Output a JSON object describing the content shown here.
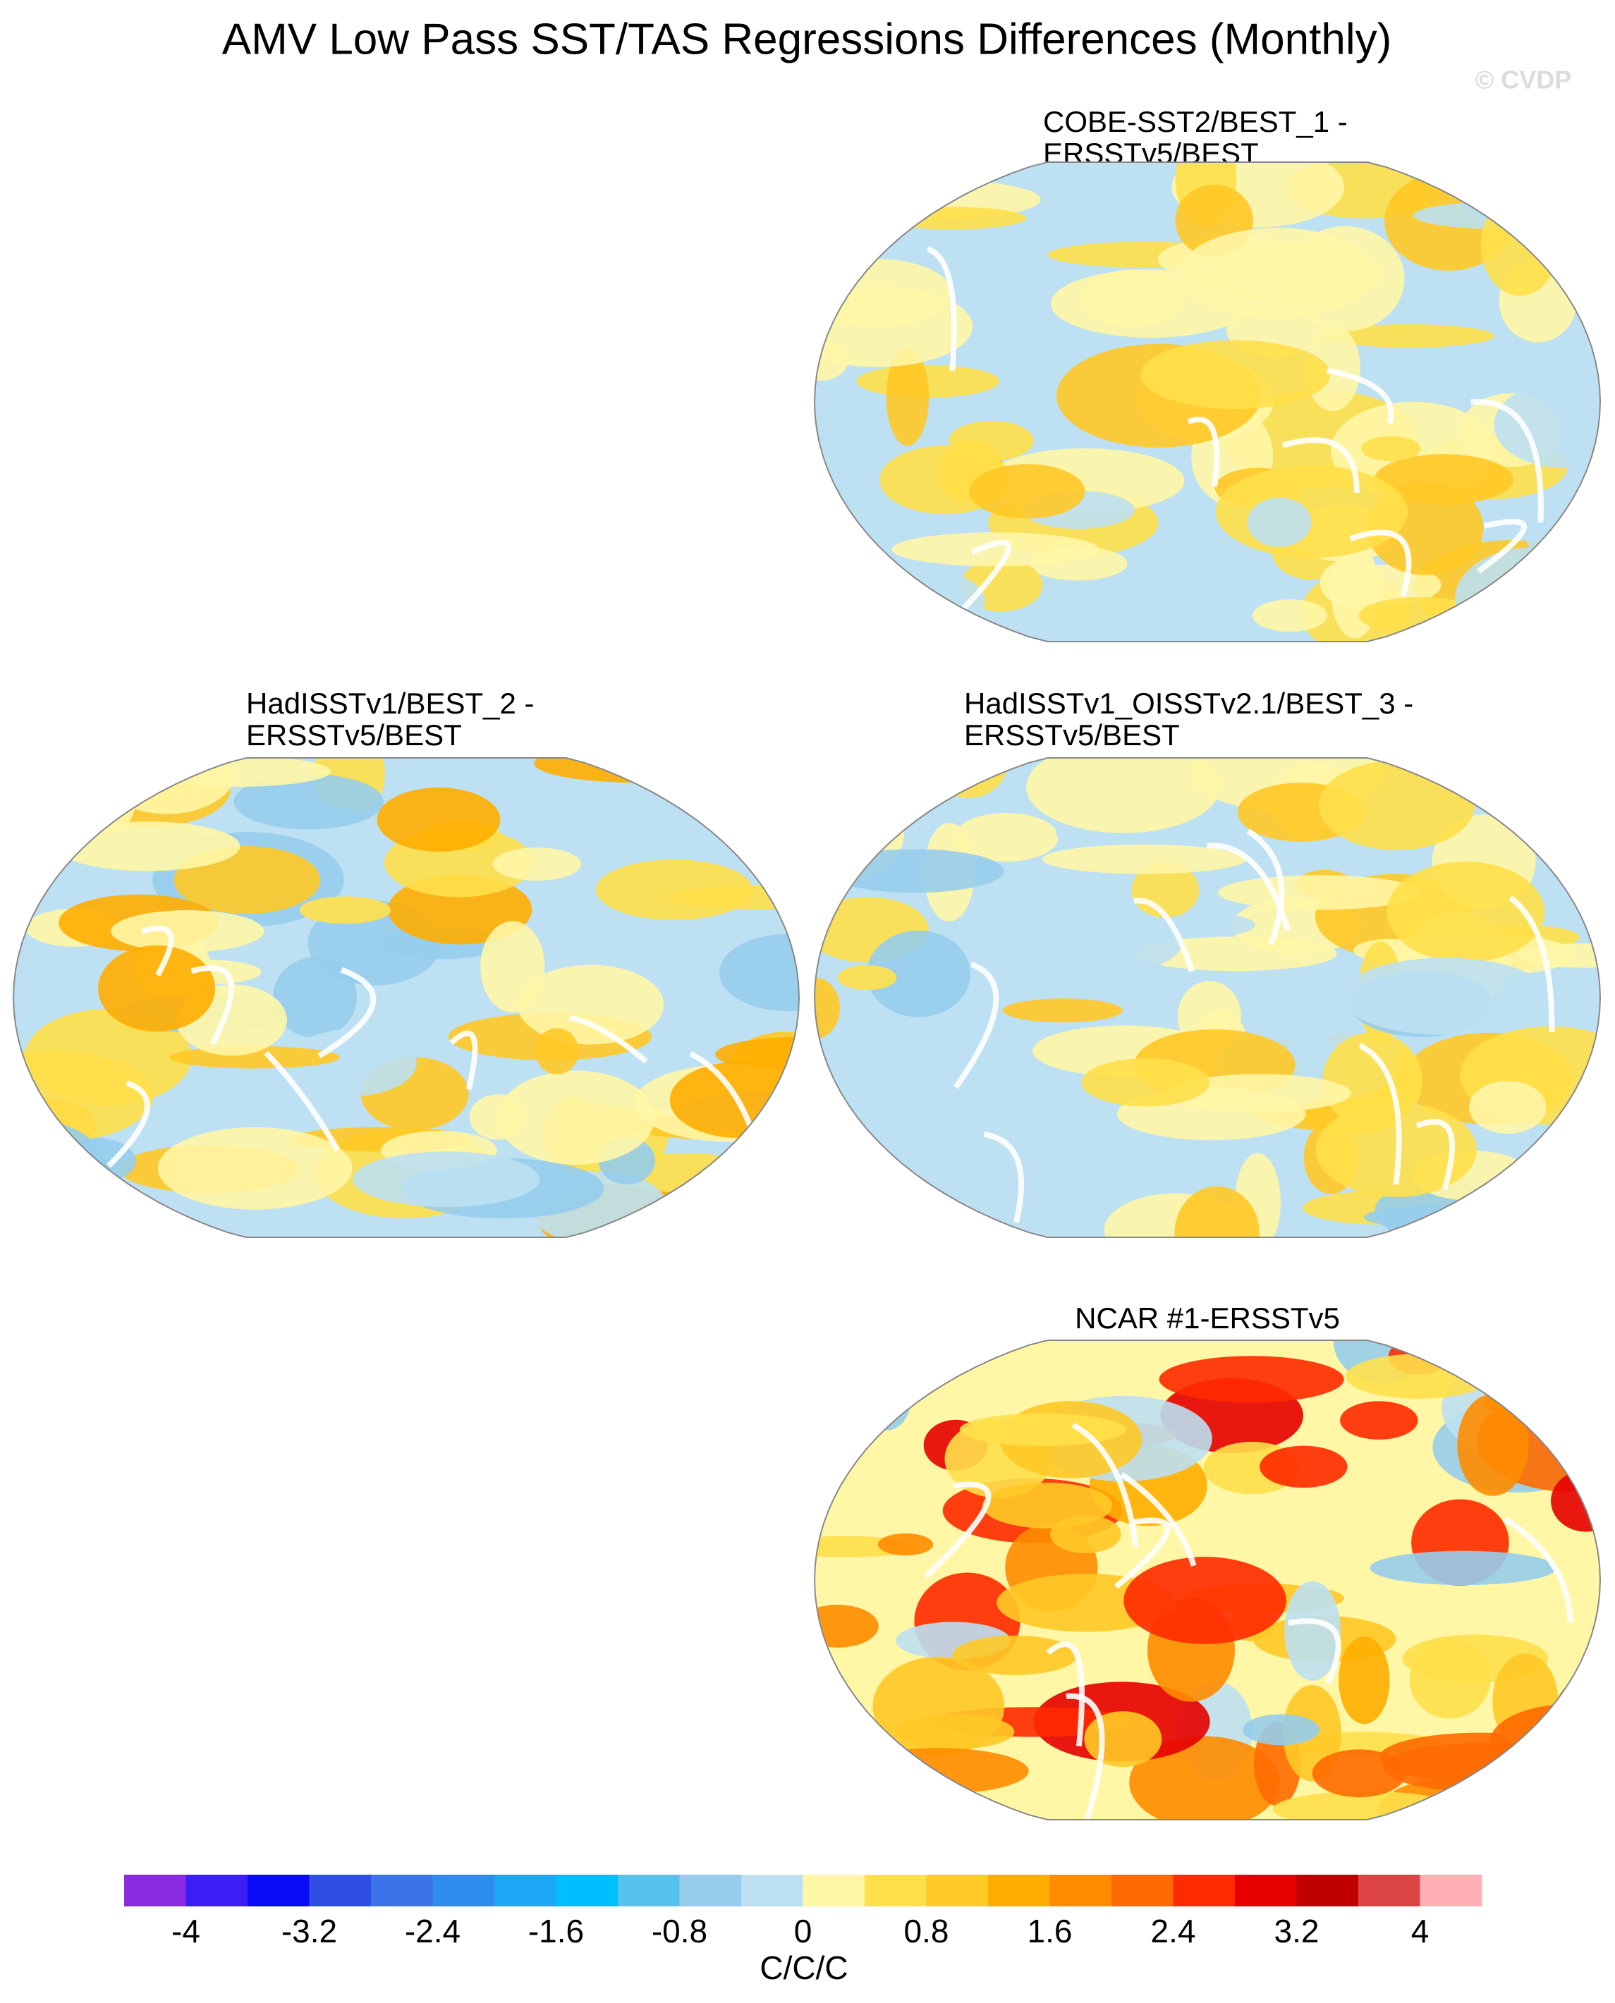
{
  "title": "AMV Low Pass SST/TAS Regressions Differences (Monthly)",
  "watermark": "© CVDP",
  "panels": [
    {
      "title_lines": [
        "COBE-SST2/BEST_1 -",
        "ERSSTv5/BEST"
      ]
    },
    {
      "title_lines": [
        "HadISSTv1/BEST_2 -",
        "ERSSTv5/BEST"
      ]
    },
    {
      "title_lines": [
        "HadISSTv1_OISSTv2.1/BEST_3 -",
        "ERSSTv5/BEST"
      ]
    },
    {
      "title_lines": [
        "NCAR #1-ERSSTv5"
      ]
    }
  ],
  "colorbar": {
    "label": "C/C/C",
    "lim": [
      -4.4,
      4.4
    ],
    "ticks": [
      -4,
      -3.2,
      -2.4,
      -1.6,
      -0.8,
      0,
      0.8,
      1.6,
      2.4,
      3.2,
      4
    ],
    "colors": [
      "#8a2be2",
      "#3b1ff5",
      "#0a0af5",
      "#2e4ee6",
      "#3b74e8",
      "#2c8cf0",
      "#1ea7f5",
      "#00bfff",
      "#55c2f0",
      "#96cdec",
      "#bde0f2",
      "#fff6a6",
      "#ffe04a",
      "#ffc926",
      "#ffae00",
      "#ff8c00",
      "#ff6a00",
      "#ff2a00",
      "#e60000",
      "#c00000",
      "#dd4444",
      "#ffb0b4"
    ]
  }
}
